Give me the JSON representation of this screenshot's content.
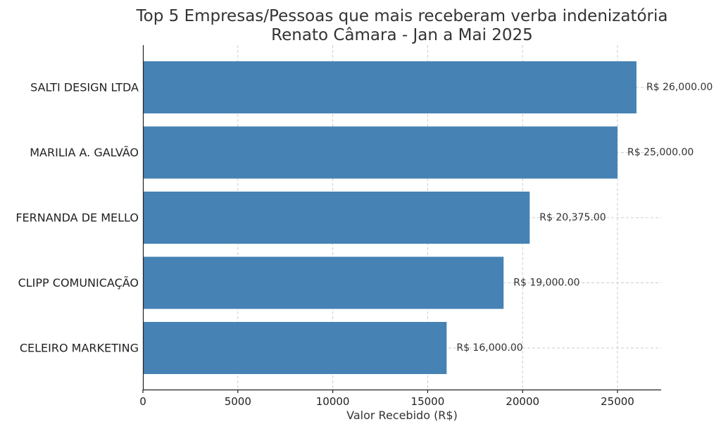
{
  "chart_data": {
    "type": "bar",
    "orientation": "horizontal",
    "title": "Top 5 Empresas/Pessoas que mais receberam verba indenizatória",
    "subtitle": "Renato Câmara - Jan a Mai 2025",
    "xlabel": "Valor Recebido (R$)",
    "ylabel": "",
    "categories": [
      "SALTI DESIGN LTDA",
      "MARILIA A. GALVÃO",
      "FERNANDA DE MELLO",
      "CLIPP COMUNICAÇÃO",
      "CELEIRO MARKETING"
    ],
    "values": [
      26000,
      25000,
      20375,
      19000,
      16000
    ],
    "value_labels": [
      "R$ 26,000.00",
      "R$ 25,000.00",
      "R$ 20,375.00",
      "R$ 19,000.00",
      "R$ 16,000.00"
    ],
    "xticks": [
      0,
      5000,
      10000,
      15000,
      20000,
      25000
    ],
    "xtick_labels": [
      "0",
      "5000",
      "10000",
      "15000",
      "20000",
      "25000"
    ],
    "xlim": [
      0,
      27300
    ],
    "grid": true,
    "bar_color": "#4682b4"
  }
}
